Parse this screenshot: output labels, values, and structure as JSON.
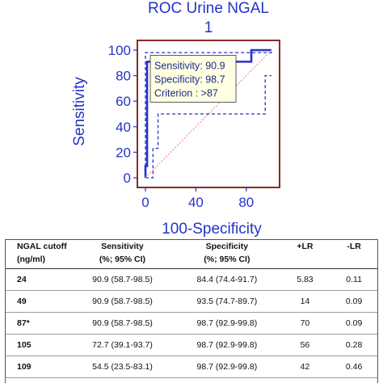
{
  "chart_data": {
    "type": "line",
    "title": "ROC Urine NGAL",
    "subtitle": "1",
    "xlabel": "100-Specificity",
    "ylabel": "Sensitivity",
    "xlim": [
      0,
      100
    ],
    "ylim": [
      0,
      100
    ],
    "xticks": [
      "0",
      "40",
      "80"
    ],
    "yticks": [
      "0",
      "20",
      "40",
      "60",
      "80",
      "100"
    ],
    "series": [
      {
        "style": "solid",
        "color": "#2433c8",
        "points": [
          [
            0,
            0
          ],
          [
            0,
            9.1
          ],
          [
            1.3,
            9.1
          ],
          [
            1.3,
            90.9
          ],
          [
            84,
            90.9
          ],
          [
            84,
            100
          ],
          [
            100,
            100
          ]
        ]
      },
      {
        "style": "dashed-upper",
        "color": "#2433c8",
        "points": [
          [
            0,
            0
          ],
          [
            0,
            98
          ],
          [
            100,
            98
          ],
          [
            100,
            100
          ]
        ]
      },
      {
        "style": "dashed-lower",
        "color": "#2433c8",
        "points": [
          [
            0,
            0
          ],
          [
            6,
            0
          ],
          [
            6,
            23
          ],
          [
            10,
            23
          ],
          [
            10,
            50
          ],
          [
            95,
            50
          ],
          [
            95,
            80
          ],
          [
            100,
            80
          ]
        ]
      },
      {
        "style": "reference",
        "color": "#e8898e",
        "points": [
          [
            0,
            0
          ],
          [
            100,
            100
          ]
        ]
      }
    ],
    "tooltip": {
      "lines": [
        "Sensitivity: 90.9",
        "Specificity: 98.7",
        "Criterion : >87"
      ],
      "point": [
        1.3,
        90.9
      ]
    },
    "colors": {
      "axis_text": "#2433c8",
      "frame": "#8b2a2a",
      "tooltip_bg": "#ffffe1"
    }
  },
  "table": {
    "headers_row1": [
      "NGAL cutoff",
      "Sensitivity",
      "Specificity",
      "+LR",
      "-LR"
    ],
    "headers_row2": [
      "(ng/ml)",
      "(%; 95% CI)",
      "(%; 95% CI)",
      "",
      ""
    ],
    "rows": [
      [
        "24",
        "90.9 (58.7-98.5)",
        "84.4 (74.4-91.7)",
        "5.83",
        "0.11"
      ],
      [
        "49",
        "90.9 (58.7-98.5)",
        "93.5 (74.7-89.7)",
        "14",
        "0.09"
      ],
      [
        "87*",
        "90.9 (58.7-98.5)",
        "98.7 (92.9-99.8)",
        "70",
        "0.09"
      ],
      [
        "105",
        "72.7 (39.1-93.7)",
        "98.7 (92.9-99.8)",
        "56",
        "0.28"
      ],
      [
        "109",
        "54.5 (23.5-83.1)",
        "98.7 (92.9-99.8)",
        "42",
        "0.46"
      ]
    ]
  }
}
